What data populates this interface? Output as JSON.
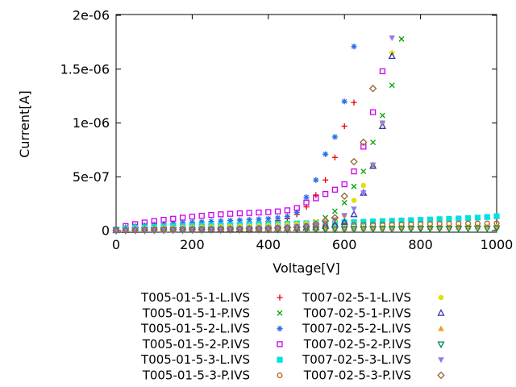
{
  "chart_data": {
    "type": "scatter",
    "title": "",
    "xlabel": "Voltage[V]",
    "ylabel": "Current[A]",
    "xlim": [
      0,
      1000
    ],
    "ylim": [
      0,
      2e-06
    ],
    "grid": false,
    "legend_position": "below-plot-two-columns",
    "xticks": [
      0,
      200,
      400,
      600,
      800,
      1000
    ],
    "yticks": [
      {
        "value": 0,
        "label": "0"
      },
      {
        "value": 5e-07,
        "label": "5e-07"
      },
      {
        "value": 1e-06,
        "label": "1e-06"
      },
      {
        "value": 1.5e-06,
        "label": "1.5e-06"
      },
      {
        "value": 2e-06,
        "label": "2e-06"
      }
    ],
    "voltage_start": 0,
    "voltage_step": 25,
    "current_unit_scale": 1e-06,
    "series": [
      {
        "name": "T005-01-5-1-L.IVS",
        "color": "#e60000",
        "marker": "plus",
        "current_values_uA": [
          0.005,
          0.015,
          0.022,
          0.028,
          0.033,
          0.038,
          0.042,
          0.046,
          0.05,
          0.054,
          0.058,
          0.062,
          0.066,
          0.07,
          0.074,
          0.078,
          0.084,
          0.092,
          0.11,
          0.15,
          0.22,
          0.33,
          0.47,
          0.68,
          0.97,
          1.19
        ]
      },
      {
        "name": "T005-01-5-1-P.IVS",
        "color": "#00a000",
        "marker": "cross",
        "current_values_uA": [
          0.002,
          0.004,
          0.005,
          0.006,
          0.007,
          0.008,
          0.009,
          0.01,
          0.011,
          0.012,
          0.013,
          0.014,
          0.015,
          0.016,
          0.017,
          0.018,
          0.02,
          0.023,
          0.027,
          0.033,
          0.05,
          0.08,
          0.12,
          0.18,
          0.26,
          0.41,
          0.55,
          0.82,
          1.07,
          1.35,
          1.78
        ]
      },
      {
        "name": "T005-01-5-2-L.IVS",
        "color": "#2a70e8",
        "marker": "asterisk",
        "current_values_uA": [
          0.008,
          0.03,
          0.042,
          0.05,
          0.057,
          0.063,
          0.068,
          0.073,
          0.077,
          0.081,
          0.085,
          0.089,
          0.093,
          0.097,
          0.101,
          0.105,
          0.11,
          0.118,
          0.132,
          0.17,
          0.31,
          0.47,
          0.71,
          0.87,
          1.2,
          1.71
        ]
      },
      {
        "name": "T005-01-5-2-P.IVS",
        "color": "#cc00ee",
        "marker": "square-open",
        "current_values_uA": [
          0.01,
          0.042,
          0.06,
          0.075,
          0.088,
          0.1,
          0.11,
          0.12,
          0.13,
          0.138,
          0.145,
          0.151,
          0.156,
          0.16,
          0.164,
          0.168,
          0.172,
          0.178,
          0.188,
          0.21,
          0.26,
          0.3,
          0.34,
          0.38,
          0.43,
          0.55,
          0.78,
          1.1,
          1.48
        ]
      },
      {
        "name": "T005-01-5-3-L.IVS",
        "color": "#00e0e0",
        "marker": "square-filled",
        "current_values_uA": [
          0.008,
          0.02,
          0.026,
          0.03,
          0.034,
          0.037,
          0.04,
          0.042,
          0.044,
          0.046,
          0.048,
          0.05,
          0.052,
          0.054,
          0.056,
          0.058,
          0.06,
          0.062,
          0.064,
          0.066,
          0.068,
          0.07,
          0.072,
          0.074,
          0.076,
          0.079,
          0.082,
          0.085,
          0.088,
          0.091,
          0.094,
          0.097,
          0.1,
          0.103,
          0.106,
          0.109,
          0.112,
          0.116,
          0.12,
          0.126,
          0.133
        ]
      },
      {
        "name": "T005-01-5-3-P.IVS",
        "color": "#c05a14",
        "marker": "circle-open",
        "current_values_uA": [
          0.004,
          0.006,
          0.008,
          0.009,
          0.01,
          0.011,
          0.012,
          0.013,
          0.014,
          0.015,
          0.016,
          0.017,
          0.018,
          0.02,
          0.022,
          0.024,
          0.026,
          0.028,
          0.03,
          0.033,
          0.036,
          0.039,
          0.042,
          0.045,
          0.048,
          0.051,
          0.053,
          0.055,
          0.057,
          0.058,
          0.059,
          0.06,
          0.061,
          0.062,
          0.063,
          0.064,
          0.065,
          0.066,
          0.066,
          0.067,
          0.068
        ]
      },
      {
        "name": "T007-02-5-1-L.IVS",
        "color": "#e0e000",
        "marker": "circle-filled",
        "current_values_uA": [
          0.004,
          0.012,
          0.016,
          0.019,
          0.022,
          0.025,
          0.027,
          0.029,
          0.031,
          0.033,
          0.035,
          0.037,
          0.039,
          0.041,
          0.043,
          0.045,
          0.048,
          0.051,
          0.055,
          0.06,
          0.066,
          0.074,
          0.085,
          0.1,
          0.14,
          0.28,
          0.42,
          0.6,
          1.0,
          1.65
        ]
      },
      {
        "name": "T007-02-5-1-P.IVS",
        "color": "#3434b4",
        "marker": "triangle-up-open",
        "current_values_uA": [
          0.002,
          0.003,
          0.004,
          0.005,
          0.006,
          0.007,
          0.008,
          0.009,
          0.01,
          0.011,
          0.012,
          0.013,
          0.014,
          0.015,
          0.016,
          0.017,
          0.018,
          0.019,
          0.02,
          0.022,
          0.025,
          0.03,
          0.04,
          0.055,
          0.08,
          0.15,
          0.35,
          0.6,
          0.97,
          1.62
        ]
      },
      {
        "name": "T007-02-5-2-L.IVS",
        "color": "#f0a028",
        "marker": "triangle-up-filled",
        "current_values_uA": [
          0.003,
          0.005,
          0.006,
          0.007,
          0.008,
          0.009,
          0.01,
          0.01,
          0.011,
          0.011,
          0.012,
          0.012,
          0.013,
          0.013,
          0.014,
          0.014,
          0.015,
          0.015,
          0.016,
          0.016,
          0.017,
          0.018,
          0.019,
          0.02,
          0.021,
          0.022,
          0.023,
          0.024,
          0.025,
          0.026,
          0.027,
          0.028,
          0.029,
          0.03,
          0.031,
          0.032,
          0.033,
          0.034,
          0.034,
          0.035,
          0.035
        ]
      },
      {
        "name": "T007-02-5-2-P.IVS",
        "color": "#00885a",
        "marker": "triangle-down-open",
        "current_values_uA": [
          0.001,
          0.002,
          0.003,
          0.003,
          0.004,
          0.004,
          0.005,
          0.005,
          0.006,
          0.006,
          0.007,
          0.007,
          0.008,
          0.008,
          0.009,
          0.009,
          0.01,
          0.01,
          0.011,
          0.011,
          0.012,
          0.012,
          0.013,
          0.013,
          0.014,
          0.014,
          0.015,
          0.015,
          0.016,
          0.016,
          0.017,
          0.017,
          0.018,
          0.018,
          0.019,
          0.019,
          0.02,
          0.02,
          0.021,
          0.021,
          0.022
        ]
      },
      {
        "name": "T007-02-5-3-L.IVS",
        "color": "#9678e8",
        "marker": "triangle-down-filled",
        "current_values_uA": [
          0.003,
          0.006,
          0.008,
          0.01,
          0.011,
          0.012,
          0.013,
          0.014,
          0.015,
          0.016,
          0.017,
          0.018,
          0.019,
          0.02,
          0.022,
          0.024,
          0.026,
          0.029,
          0.033,
          0.038,
          0.045,
          0.055,
          0.07,
          0.1,
          0.14,
          0.2,
          0.35,
          0.61,
          1.0,
          1.79
        ]
      },
      {
        "name": "T007-02-5-3-P.IVS",
        "color": "#966432",
        "marker": "diamond-open",
        "current_values_uA": [
          0.002,
          0.004,
          0.005,
          0.006,
          0.007,
          0.008,
          0.009,
          0.01,
          0.011,
          0.012,
          0.013,
          0.014,
          0.015,
          0.016,
          0.017,
          0.018,
          0.02,
          0.022,
          0.025,
          0.03,
          0.04,
          0.06,
          0.09,
          0.12,
          0.32,
          0.64,
          0.82,
          1.32
        ]
      }
    ]
  }
}
